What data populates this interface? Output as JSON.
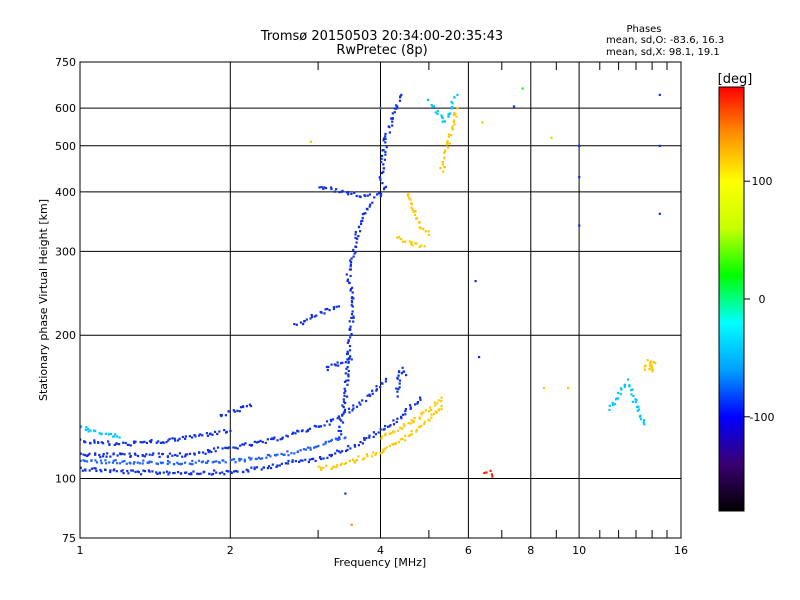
{
  "chart_data": {
    "type": "scatter",
    "title": "Tromsø 20150503 20:34:00-20:35:43",
    "subtitle": "RwPretec (8p)",
    "stats_heading": "Phases",
    "stats_o": "mean, sd,O: -83.6, 16.3",
    "stats_x": "mean, sd,X:  98.1, 19.1",
    "xlabel": "Frequency [MHz]",
    "ylabel": "Stationary phase Virtual Height [km]",
    "xscale": "log",
    "yscale": "log",
    "xlim": [
      1,
      16
    ],
    "ylim": [
      75,
      750
    ],
    "grid": true,
    "x_ticks": [
      1,
      2,
      4,
      6,
      8,
      10,
      16
    ],
    "x_minor_ticks": [
      3,
      5,
      7,
      9,
      11,
      12,
      13,
      14,
      15
    ],
    "y_ticks": [
      75,
      100,
      200,
      300,
      400,
      500,
      600,
      750
    ],
    "colorbar": {
      "label": "[deg]",
      "range": [
        -180,
        180
      ],
      "ticks": [
        100,
        0,
        -100
      ],
      "colormap": [
        "#000000",
        "#3a0070",
        "#0000ff",
        "#00a0ff",
        "#00ffff",
        "#00ff00",
        "#c8ff00",
        "#ffff00",
        "#ff9000",
        "#ff0000"
      ]
    },
    "series": [
      {
        "color": "#1030e0",
        "segments": [
          [
            [
              1.0,
              105
            ],
            [
              1.3,
              103
            ],
            [
              1.6,
              103
            ],
            [
              2.0,
              103
            ],
            [
              2.3,
              105
            ],
            [
              2.6,
              108
            ],
            [
              3.0,
              110
            ],
            [
              3.3,
              114
            ],
            [
              3.6,
              118
            ],
            [
              3.9,
              124
            ],
            [
              4.2,
              130
            ],
            [
              4.5,
              138
            ],
            [
              4.8,
              148
            ]
          ],
          [
            [
              1.0,
              112
            ],
            [
              1.3,
              112
            ],
            [
              1.6,
              112
            ],
            [
              2.0,
              116
            ],
            [
              2.4,
              120
            ],
            [
              2.8,
              126
            ],
            [
              3.2,
              132
            ],
            [
              3.5,
              140
            ],
            [
              3.8,
              150
            ],
            [
              4.1,
              162
            ]
          ],
          [
            [
              1.0,
              120
            ],
            [
              1.2,
              118
            ],
            [
              1.5,
              120
            ],
            [
              1.8,
              124
            ],
            [
              2.0,
              126
            ]
          ],
          [
            [
              1.9,
              135
            ],
            [
              2.0,
              138
            ],
            [
              2.1,
              140
            ],
            [
              2.2,
              142
            ]
          ],
          [
            [
              3.3,
              120
            ],
            [
              3.4,
              150
            ],
            [
              3.45,
              180
            ],
            [
              3.5,
              210
            ],
            [
              3.5,
              240
            ],
            [
              3.45,
              270
            ],
            [
              3.55,
              300
            ],
            [
              3.6,
              330
            ],
            [
              3.7,
              360
            ],
            [
              3.85,
              380
            ]
          ],
          [
            [
              3.0,
              410
            ],
            [
              3.2,
              405
            ],
            [
              3.4,
              400
            ],
            [
              3.6,
              395
            ],
            [
              3.8,
              392
            ],
            [
              4.0,
              395
            ],
            [
              4.1,
              410
            ]
          ],
          [
            [
              2.7,
              210
            ],
            [
              2.9,
              218
            ],
            [
              3.1,
              225
            ],
            [
              3.3,
              230
            ]
          ],
          [
            [
              4.0,
              420
            ],
            [
              4.05,
              470
            ],
            [
              4.1,
              520
            ],
            [
              4.2,
              560
            ],
            [
              4.3,
              600
            ],
            [
              4.4,
              640
            ]
          ],
          [
            [
              3.1,
              170
            ],
            [
              3.3,
              175
            ],
            [
              3.5,
              178
            ]
          ],
          [
            [
              4.3,
              150
            ],
            [
              4.4,
              170
            ],
            [
              4.5,
              165
            ]
          ]
        ]
      },
      {
        "color": "#ffc800",
        "segments": [
          [
            [
              3.0,
              105
            ],
            [
              3.3,
              106
            ],
            [
              3.6,
              110
            ],
            [
              4.0,
              114
            ],
            [
              4.4,
              120
            ],
            [
              4.8,
              128
            ],
            [
              5.1,
              136
            ],
            [
              5.3,
              142
            ]
          ],
          [
            [
              4.0,
              122
            ],
            [
              4.4,
              128
            ],
            [
              4.8,
              135
            ],
            [
              5.1,
              142
            ],
            [
              5.3,
              148
            ]
          ],
          [
            [
              4.5,
              400
            ],
            [
              4.6,
              380
            ],
            [
              4.7,
              360
            ],
            [
              4.8,
              340
            ],
            [
              4.9,
              330
            ],
            [
              5.0,
              325
            ]
          ],
          [
            [
              4.3,
              320
            ],
            [
              4.5,
              315
            ],
            [
              4.7,
              310
            ],
            [
              4.9,
              308
            ]
          ],
          [
            [
              5.3,
              440
            ],
            [
              5.4,
              480
            ],
            [
              5.5,
              520
            ],
            [
              5.6,
              560
            ],
            [
              5.7,
              600
            ]
          ],
          [
            [
              13.8,
              178
            ],
            [
              14.0,
              168
            ],
            [
              13.5,
              172
            ],
            [
              14.2,
              175
            ]
          ]
        ]
      },
      {
        "color": "#00c8ff",
        "segments": [
          [
            [
              5.0,
              620
            ],
            [
              5.2,
              590
            ],
            [
              5.4,
              560
            ],
            [
              5.6,
              620
            ],
            [
              5.7,
              640
            ]
          ],
          [
            [
              1.0,
              128
            ],
            [
              1.1,
              125
            ],
            [
              1.2,
              122
            ]
          ],
          [
            [
              11.5,
              140
            ],
            [
              12.0,
              150
            ],
            [
              12.5,
              160
            ],
            [
              13.5,
              130
            ]
          ]
        ]
      },
      {
        "color": "#2060ff",
        "segments": [
          [
            [
              1.0,
              109
            ],
            [
              1.4,
              108
            ],
            [
              1.8,
              108
            ],
            [
              2.2,
              110
            ],
            [
              2.6,
              113
            ],
            [
              3.0,
              117
            ],
            [
              3.4,
              122
            ]
          ]
        ]
      },
      {
        "color": "#ff2000",
        "segments": [
          [
            [
              6.5,
              102
            ],
            [
              6.6,
              103
            ],
            [
              6.7,
              101
            ]
          ]
        ]
      }
    ],
    "isolated_points": [
      {
        "x": 10.0,
        "y": 340,
        "color": "#1030e0"
      },
      {
        "x": 10.0,
        "y": 430,
        "color": "#1030e0"
      },
      {
        "x": 10.0,
        "y": 500,
        "color": "#1030e0"
      },
      {
        "x": 14.5,
        "y": 360,
        "color": "#1030e0"
      },
      {
        "x": 14.5,
        "y": 500,
        "color": "#1030e0"
      },
      {
        "x": 14.5,
        "y": 640,
        "color": "#1030e0"
      },
      {
        "x": 6.3,
        "y": 180,
        "color": "#1030e0"
      },
      {
        "x": 6.2,
        "y": 260,
        "color": "#1030e0"
      },
      {
        "x": 7.4,
        "y": 605,
        "color": "#1030e0"
      },
      {
        "x": 8.5,
        "y": 155,
        "color": "#ffc800"
      },
      {
        "x": 9.5,
        "y": 155,
        "color": "#ffc800"
      },
      {
        "x": 8.8,
        "y": 520,
        "color": "#ffc800"
      },
      {
        "x": 6.4,
        "y": 560,
        "color": "#ffc800"
      },
      {
        "x": 2.9,
        "y": 510,
        "color": "#ffc800"
      },
      {
        "x": 3.5,
        "y": 80,
        "color": "#ff9000"
      },
      {
        "x": 3.4,
        "y": 93,
        "color": "#1030e0"
      },
      {
        "x": 7.7,
        "y": 660,
        "color": "#00ff00"
      },
      {
        "x": 4.0,
        "y": 600,
        "color": "#2060ff"
      }
    ]
  }
}
